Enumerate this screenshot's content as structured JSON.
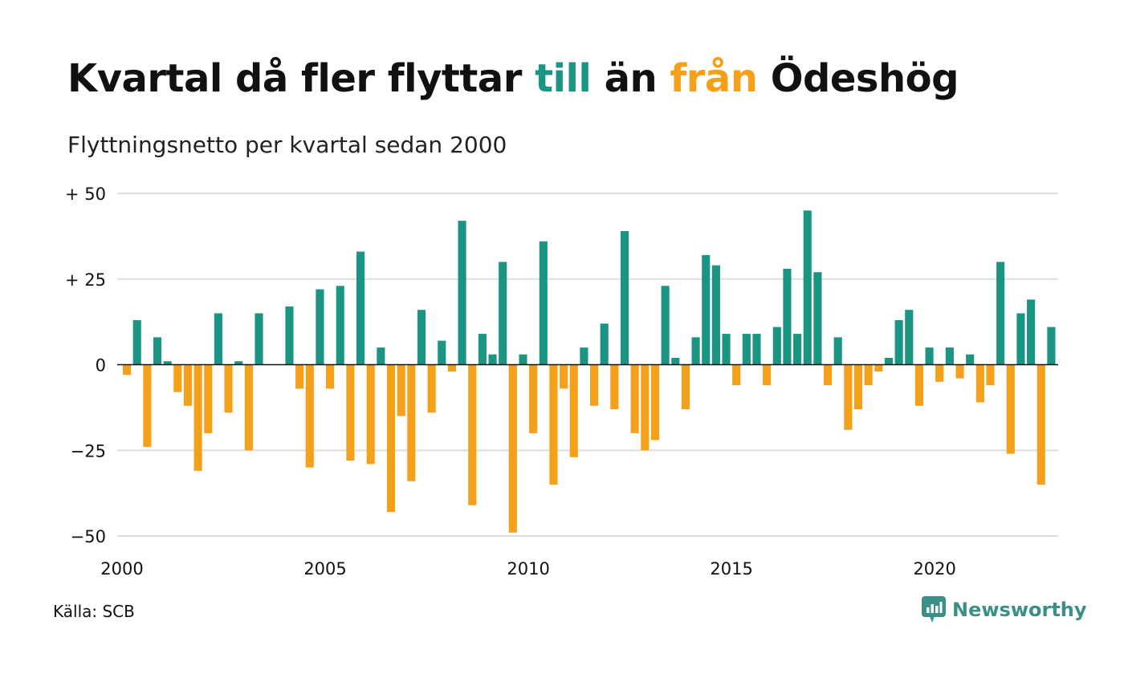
{
  "title": {
    "part1": "Kvartal då fler flyttar ",
    "highlight_pos": "till",
    "part2": " än ",
    "highlight_neg": "från",
    "part3": " Ödeshög"
  },
  "subtitle": "Flyttningsnetto per kvartal sedan 2000",
  "source": "Källa: SCB",
  "brand": "Newsworthy",
  "colors": {
    "positive": "#1a9483",
    "negative": "#f5a01a",
    "grid": "#dddddd",
    "axis": "#111111",
    "brand": "#3a8f87"
  },
  "chart_data": {
    "type": "bar",
    "x_start_year": 2000,
    "periods_per_year": 4,
    "ylim": [
      -50,
      50
    ],
    "yticks": [
      {
        "value": 50,
        "label": "+ 50"
      },
      {
        "value": 25,
        "label": "+ 25"
      },
      {
        "value": 0,
        "label": "0"
      },
      {
        "value": -25,
        "label": "−25"
      },
      {
        "value": -50,
        "label": "−50"
      }
    ],
    "xticks": [
      "2000",
      "2005",
      "2010",
      "2015",
      "2020"
    ],
    "grid": true,
    "values": [
      -3,
      13,
      -24,
      8,
      1,
      -8,
      -12,
      -31,
      -20,
      15,
      -14,
      1,
      -25,
      15,
      0,
      0,
      17,
      -7,
      -30,
      22,
      -7,
      23,
      -28,
      33,
      -29,
      5,
      -43,
      -15,
      -34,
      16,
      -14,
      7,
      -2,
      42,
      -41,
      9,
      3,
      30,
      -49,
      3,
      -20,
      36,
      -35,
      -7,
      -27,
      5,
      -12,
      12,
      -13,
      39,
      -20,
      -25,
      -22,
      23,
      2,
      -13,
      8,
      32,
      29,
      9,
      -6,
      9,
      9,
      -6,
      11,
      28,
      9,
      45,
      27,
      -6,
      8,
      -19,
      -13,
      -6,
      -2,
      2,
      13,
      16,
      -12,
      5,
      -5,
      5,
      -4,
      3,
      -11,
      -6,
      30,
      -26,
      15,
      19,
      -35,
      11
    ]
  }
}
